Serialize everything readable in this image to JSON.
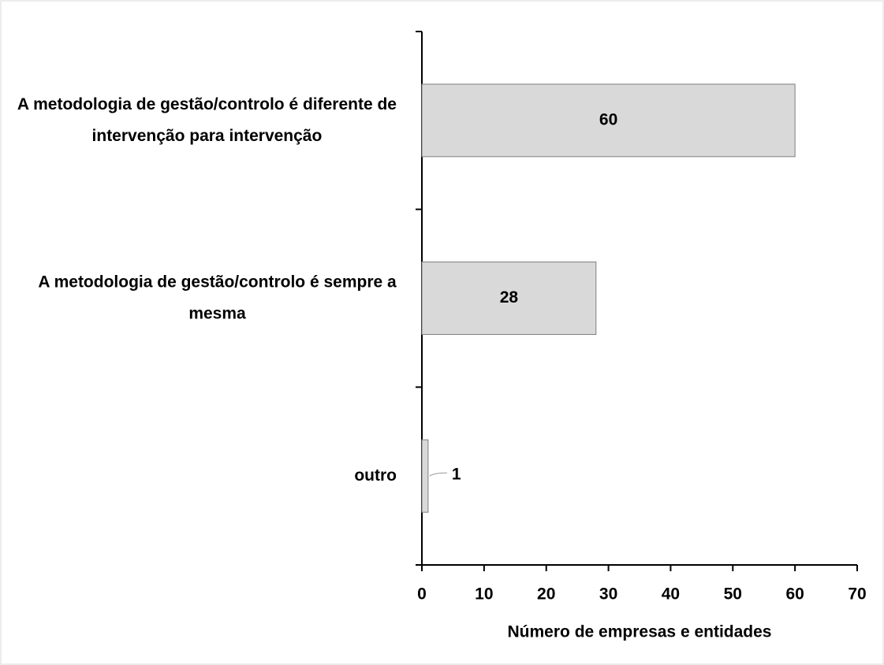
{
  "chart_data": {
    "type": "barh",
    "categories": [
      "A metodologia de gestão/controlo é diferente de intervenção para intervenção",
      "A metodologia de gestão/controlo é sempre a mesma",
      "outro"
    ],
    "values": [
      60,
      28,
      1
    ],
    "color": "#d9d9d9",
    "xlabel": "Número de empresas e entidades",
    "xlim": [
      0,
      70
    ],
    "xticks": [
      0,
      10,
      20,
      30,
      40,
      50,
      60,
      70
    ]
  }
}
